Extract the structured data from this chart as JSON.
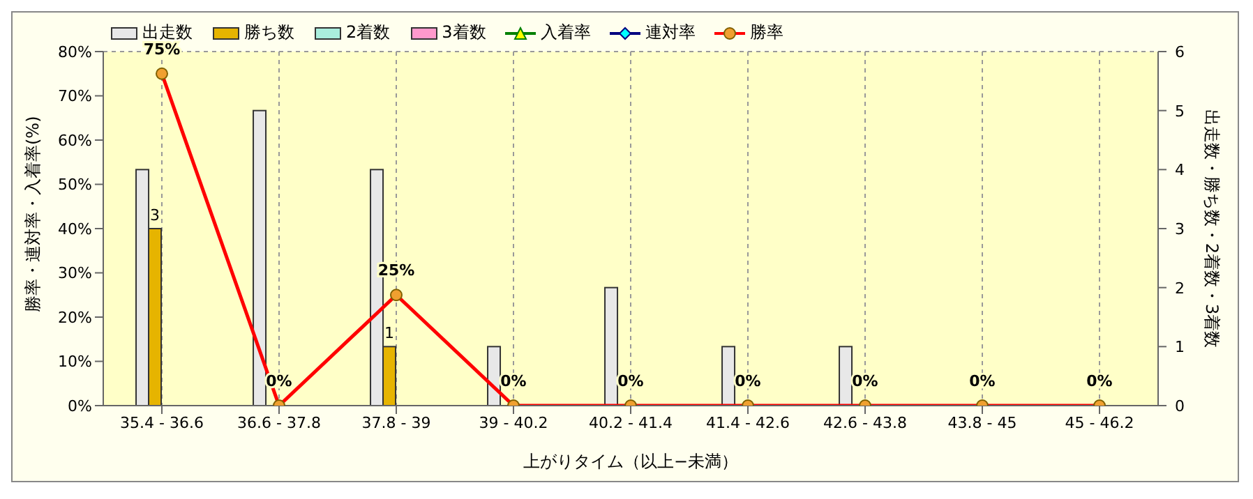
{
  "chart_data": {
    "type": "bar",
    "xlabel": "上がりタイム（以上−未満）",
    "ylabel": "勝率・連対率・入着率(%)",
    "y2label": "出走数・勝ち数・2着数・3着数",
    "categories": [
      "35.4 - 36.6",
      "36.6 - 37.8",
      "37.8 - 39",
      "39 - 40.2",
      "40.2 - 41.4",
      "41.4 - 42.6",
      "42.6 - 43.8",
      "43.8 - 45",
      "45 - 46.2"
    ],
    "series": [
      {
        "name": "出走数",
        "axis": "y2",
        "color": "#e8e8e8",
        "values": [
          4,
          5,
          4,
          1,
          2,
          1,
          1,
          0,
          0
        ]
      },
      {
        "name": "勝ち数",
        "axis": "y2",
        "color": "#e6b400",
        "values": [
          3,
          0,
          1,
          0,
          0,
          0,
          0,
          0,
          0
        ],
        "value_labels": [
          "3",
          null,
          "1",
          null,
          null,
          null,
          null,
          null,
          null
        ]
      },
      {
        "name": "2着数",
        "axis": "y2",
        "color": "#aaeedd",
        "values": [
          0,
          0,
          0,
          0,
          0,
          0,
          0,
          0,
          0
        ]
      },
      {
        "name": "3着数",
        "axis": "y2",
        "color": "#ff99cc",
        "values": [
          0,
          0,
          0,
          0,
          0,
          0,
          0,
          0,
          0
        ]
      },
      {
        "name": "入着率",
        "type": "line",
        "axis": "y",
        "color": "#008000",
        "marker": "triangle",
        "values": [
          null,
          null,
          null,
          null,
          null,
          null,
          null,
          null,
          null
        ]
      },
      {
        "name": "連対率",
        "type": "line",
        "axis": "y",
        "color": "#000080",
        "marker": "diamond",
        "values": [
          null,
          null,
          null,
          null,
          null,
          null,
          null,
          null,
          null
        ]
      },
      {
        "name": "勝率",
        "type": "line",
        "axis": "y",
        "color": "#ff0000",
        "marker": "circle",
        "values": [
          75,
          0,
          25,
          0,
          0,
          0,
          0,
          0,
          0
        ],
        "value_labels": [
          "75%",
          "0%",
          "25%",
          "0%",
          "0%",
          "0%",
          "0%",
          "0%",
          "0%"
        ]
      }
    ],
    "ylim": [
      0,
      80
    ],
    "yticks": [
      {
        "value": 0,
        "label": "0%"
      },
      {
        "value": 10,
        "label": "10%"
      },
      {
        "value": 20,
        "label": "20%"
      },
      {
        "value": 30,
        "label": "30%"
      },
      {
        "value": 40,
        "label": "40%"
      },
      {
        "value": 50,
        "label": "50%"
      },
      {
        "value": 60,
        "label": "60%"
      },
      {
        "value": 70,
        "label": "70%"
      },
      {
        "value": 80,
        "label": "80%"
      }
    ],
    "y2lim": [
      0,
      6
    ],
    "y2ticks": [
      0,
      1,
      2,
      3,
      4,
      5,
      6
    ],
    "grid": true,
    "legend": "top left"
  }
}
